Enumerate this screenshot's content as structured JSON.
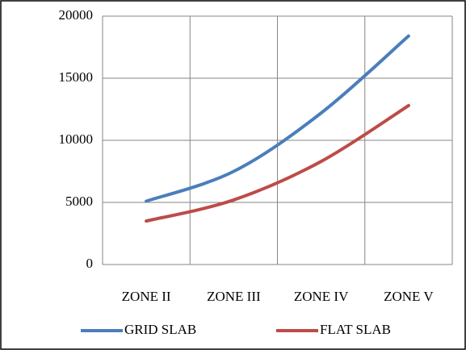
{
  "chart_data": {
    "type": "line",
    "categories": [
      "ZONE II",
      "ZONE III",
      "ZONE IV",
      "ZONE V"
    ],
    "series": [
      {
        "name": "GRID SLAB",
        "color": "#4a7ebb",
        "values": [
          5100,
          7500,
          12200,
          18400
        ]
      },
      {
        "name": "FLAT SLAB",
        "color": "#be4b48",
        "values": [
          3500,
          5200,
          8300,
          12800
        ]
      }
    ],
    "ylim": [
      0,
      20000
    ],
    "yticks": [
      0,
      5000,
      10000,
      15000,
      20000
    ],
    "grid": true,
    "legend": "bottom"
  }
}
